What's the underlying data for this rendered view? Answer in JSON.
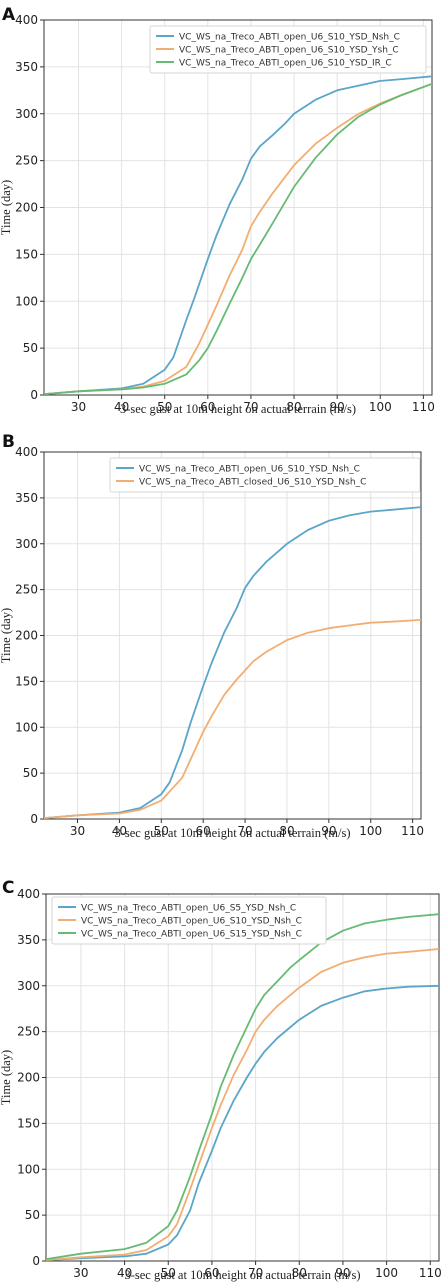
{
  "chart_data": [
    {
      "panel_label": "A",
      "type": "line",
      "xlabel": "3-sec gust at 10m height on actual terrain (m/s)",
      "ylabel": "Time (day)",
      "xlim": [
        22,
        112
      ],
      "ylim": [
        0,
        400
      ],
      "xticks": [
        30,
        40,
        50,
        60,
        70,
        80,
        90,
        100,
        110
      ],
      "yticks": [
        0,
        50,
        100,
        150,
        200,
        250,
        300,
        350,
        400
      ],
      "grid": true,
      "legend": "top-right",
      "series": [
        {
          "name": "VC_WS_na_Treco_ABTI_open_U6_S10_YSD_Nsh_C",
          "color": "#5aa5c9",
          "x": [
            22,
            30,
            40,
            45,
            50,
            52,
            55,
            57,
            60,
            62,
            65,
            68,
            70,
            72,
            75,
            78,
            80,
            85,
            90,
            95,
            100,
            105,
            112
          ],
          "y": [
            1,
            4,
            7,
            12,
            27,
            40,
            80,
            105,
            145,
            170,
            203,
            230,
            252,
            265,
            277,
            290,
            300,
            315,
            325,
            330,
            335,
            337,
            340
          ]
        },
        {
          "name": "VC_WS_na_Treco_ABTI_open_U6_S10_YSD_Ysh_C",
          "color": "#f2ae72",
          "x": [
            22,
            30,
            40,
            45,
            50,
            55,
            58,
            60,
            62,
            65,
            68,
            70,
            72,
            75,
            80,
            85,
            90,
            95,
            100,
            105,
            112
          ],
          "y": [
            1,
            4,
            6,
            9,
            15,
            30,
            55,
            75,
            95,
            127,
            155,
            180,
            195,
            215,
            245,
            268,
            285,
            300,
            311,
            320,
            332
          ]
        },
        {
          "name": "VC_WS_na_Treco_ABTI_open_U6_S10_YSD_IR_C",
          "color": "#66bb73",
          "x": [
            22,
            30,
            40,
            45,
            50,
            55,
            58,
            60,
            62,
            65,
            68,
            70,
            72,
            75,
            80,
            85,
            90,
            95,
            100,
            105,
            112
          ],
          "y": [
            1,
            4,
            6,
            8,
            12,
            22,
            37,
            50,
            68,
            97,
            125,
            145,
            160,
            183,
            222,
            253,
            278,
            297,
            310,
            320,
            332
          ]
        }
      ]
    },
    {
      "panel_label": "B",
      "type": "line",
      "xlabel": "3-sec gust at 10m height on actual terrain (m/s)",
      "ylabel": "Time (day)",
      "xlim": [
        22,
        112
      ],
      "ylim": [
        0,
        400
      ],
      "xticks": [
        30,
        40,
        50,
        60,
        70,
        80,
        90,
        100,
        110
      ],
      "yticks": [
        0,
        50,
        100,
        150,
        200,
        250,
        300,
        350,
        400
      ],
      "grid": true,
      "legend": "top-right",
      "series": [
        {
          "name": "VC_WS_na_Treco_ABTI_open_U6_S10_YSD_Nsh_C",
          "color": "#5aa5c9",
          "x": [
            22,
            30,
            40,
            45,
            50,
            52,
            55,
            57,
            60,
            62,
            65,
            68,
            70,
            72,
            75,
            78,
            80,
            85,
            90,
            95,
            100,
            105,
            112
          ],
          "y": [
            1,
            4,
            7,
            12,
            27,
            40,
            75,
            105,
            145,
            170,
            203,
            230,
            252,
            265,
            280,
            292,
            300,
            315,
            325,
            331,
            335,
            337,
            340
          ]
        },
        {
          "name": "VC_WS_na_Treco_ABTI_closed_U6_S10_YSD_Nsh_C",
          "color": "#f2ae72",
          "x": [
            22,
            30,
            40,
            45,
            50,
            55,
            58,
            60,
            62,
            65,
            68,
            70,
            72,
            75,
            80,
            85,
            90,
            95,
            100,
            105,
            112
          ],
          "y": [
            1,
            4,
            6,
            10,
            20,
            45,
            75,
            95,
            112,
            135,
            152,
            162,
            172,
            182,
            195,
            203,
            208,
            211,
            214,
            215,
            217
          ]
        }
      ]
    },
    {
      "panel_label": "C",
      "type": "line",
      "xlabel": "3-sec gust at 10m height on actual terrain (m/s)",
      "ylabel": "Time (day)",
      "xlim": [
        22,
        112
      ],
      "ylim": [
        0,
        400
      ],
      "xticks": [
        30,
        40,
        50,
        60,
        70,
        80,
        90,
        100,
        110
      ],
      "yticks": [
        0,
        50,
        100,
        150,
        200,
        250,
        300,
        350,
        400
      ],
      "grid": true,
      "legend": "top-left",
      "series": [
        {
          "name": "VC_WS_na_Treco_ABTI_open_U6_S5_YSD_Nsh_C",
          "color": "#5aa5c9",
          "x": [
            22,
            30,
            40,
            45,
            50,
            52,
            55,
            57,
            60,
            62,
            65,
            68,
            70,
            72,
            75,
            78,
            80,
            85,
            90,
            95,
            100,
            105,
            112
          ],
          "y": [
            1,
            3,
            5,
            8,
            18,
            28,
            55,
            85,
            120,
            145,
            175,
            200,
            215,
            228,
            243,
            255,
            263,
            278,
            287,
            294,
            297,
            299,
            300
          ]
        },
        {
          "name": "VC_WS_na_Treco_ABTI_open_U6_S10_YSD_Nsh_C",
          "color": "#f2ae72",
          "x": [
            22,
            30,
            40,
            45,
            50,
            52,
            55,
            57,
            60,
            62,
            65,
            68,
            70,
            72,
            75,
            78,
            80,
            85,
            90,
            95,
            100,
            105,
            112
          ],
          "y": [
            1,
            4,
            7,
            12,
            27,
            40,
            78,
            105,
            145,
            170,
            203,
            230,
            250,
            263,
            278,
            290,
            298,
            315,
            325,
            331,
            335,
            337,
            340
          ]
        },
        {
          "name": "VC_WS_na_Treco_ABTI_open_U6_S15_YSD_Nsh_C",
          "color": "#66bb73",
          "x": [
            22,
            30,
            40,
            45,
            50,
            52,
            55,
            57,
            60,
            62,
            65,
            68,
            70,
            72,
            75,
            78,
            80,
            85,
            90,
            95,
            100,
            105,
            112
          ],
          "y": [
            2,
            8,
            13,
            20,
            38,
            55,
            92,
            120,
            160,
            190,
            225,
            255,
            275,
            290,
            305,
            320,
            328,
            347,
            360,
            368,
            372,
            375,
            378
          ]
        }
      ]
    }
  ]
}
